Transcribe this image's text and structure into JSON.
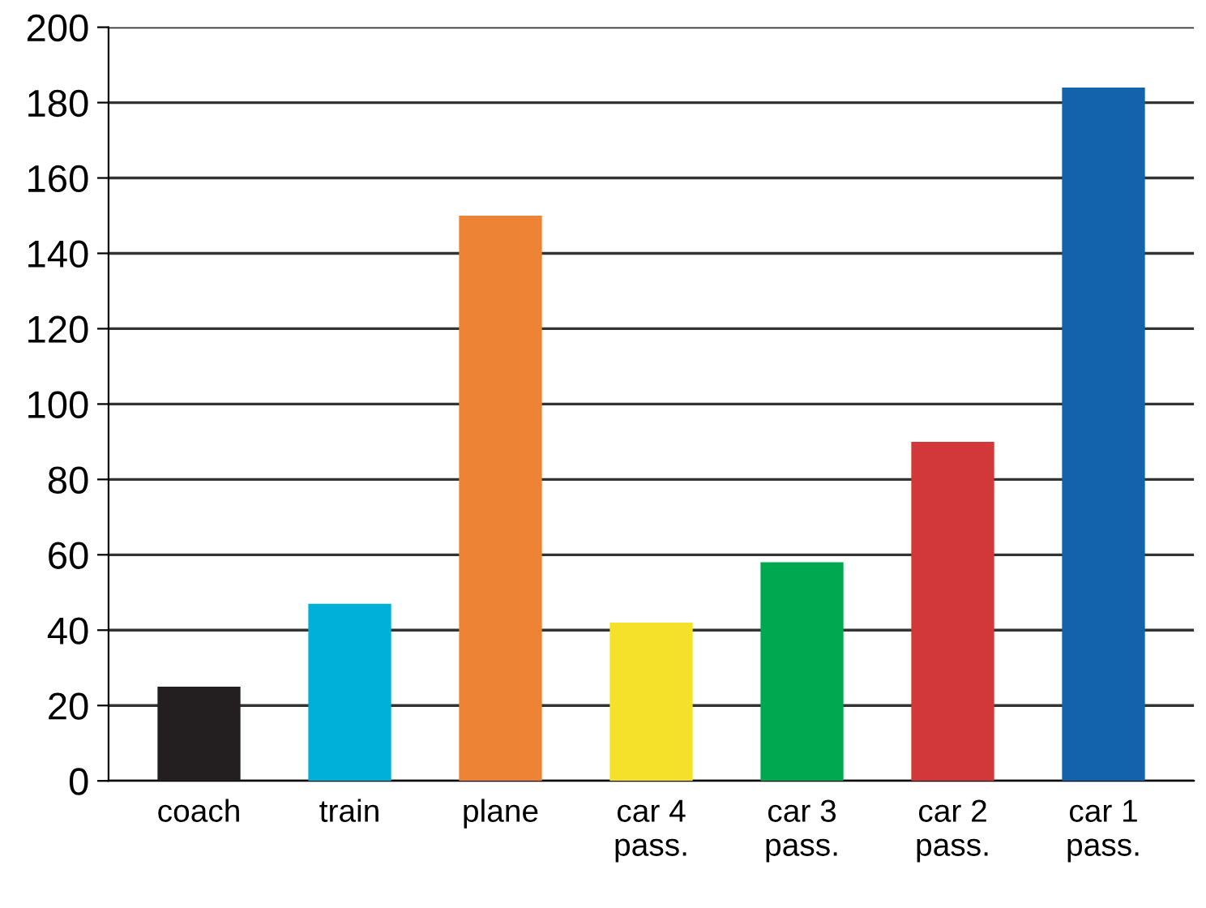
{
  "chart_data": {
    "type": "bar",
    "categories": [
      "coach",
      "train",
      "plane",
      "car 4\npass.",
      "car 3\npass.",
      "car 2\npass.",
      "car 1\npass."
    ],
    "values": [
      25,
      47,
      150,
      42,
      58,
      90,
      184
    ],
    "colors": [
      "#231f20",
      "#00b0d8",
      "#ed8435",
      "#f5e12a",
      "#00a94f",
      "#d2383a",
      "#1363ac"
    ],
    "ylim": [
      0,
      200
    ],
    "yticks": [
      0,
      20,
      40,
      60,
      80,
      100,
      120,
      140,
      160,
      180,
      200
    ],
    "grid": "y",
    "legend": false
  }
}
